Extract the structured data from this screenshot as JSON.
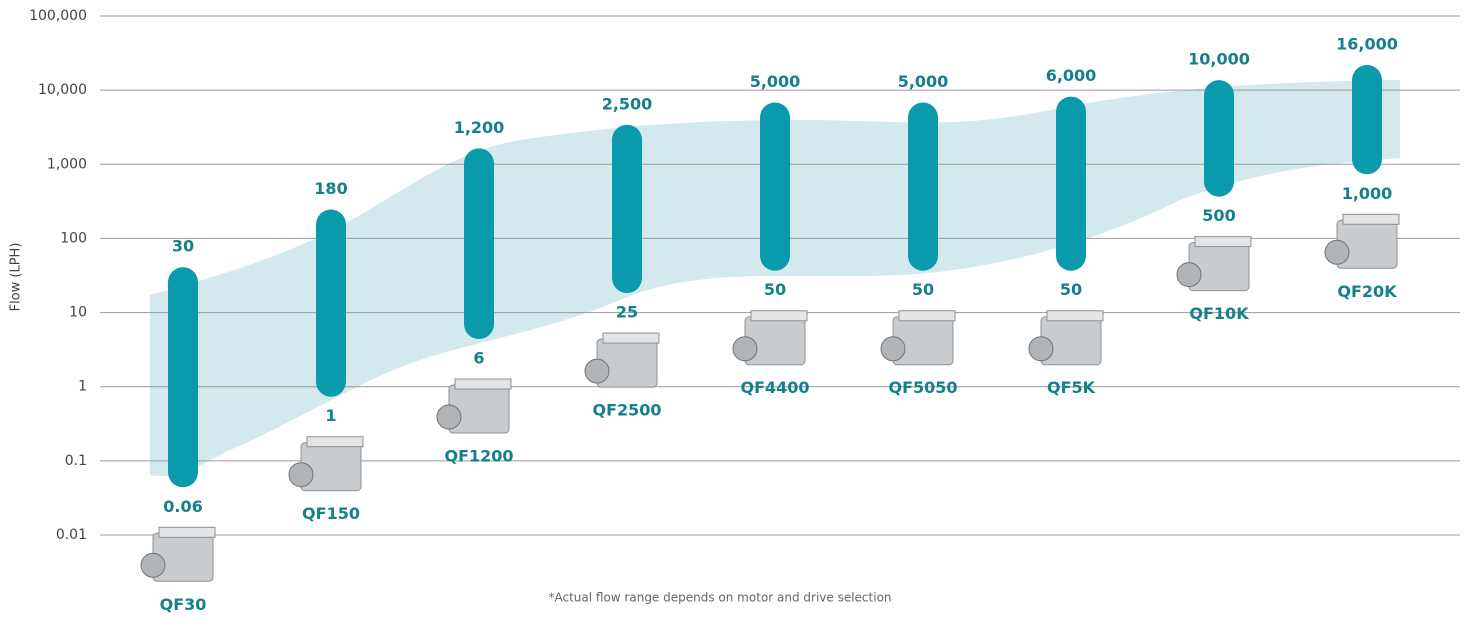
{
  "chart_data": {
    "type": "range",
    "y_label": "Flow (LPH)",
    "footnote": "*Actual flow range depends on motor and drive selection",
    "categories": [
      "QF30",
      "QF150",
      "QF1200",
      "QF2500",
      "QF4400",
      "QF5050",
      "QF5K",
      "QF10K",
      "QF20K"
    ],
    "low": [
      0.06,
      1,
      6,
      25,
      50,
      50,
      50,
      500,
      1000
    ],
    "low_labels": [
      "0.06",
      "1",
      "6",
      "25",
      "50",
      "50",
      "50",
      "500",
      "1,000"
    ],
    "high": [
      30,
      180,
      1200,
      2500,
      5000,
      5000,
      6000,
      10000,
      16000
    ],
    "high_labels": [
      "30",
      "180",
      "1,200",
      "2,500",
      "5,000",
      "5,000",
      "6,000",
      "10,000",
      "16,000"
    ],
    "color": "#0a9aab",
    "log_scale": true,
    "grid": true,
    "ylim": [
      0.01,
      100000
    ],
    "yticks": [
      {
        "value": 100000,
        "label": "100,000"
      },
      {
        "value": 10000,
        "label": "10,000"
      },
      {
        "value": 1000,
        "label": "1,000"
      },
      100,
      10,
      1,
      0.1,
      0.01
    ]
  }
}
